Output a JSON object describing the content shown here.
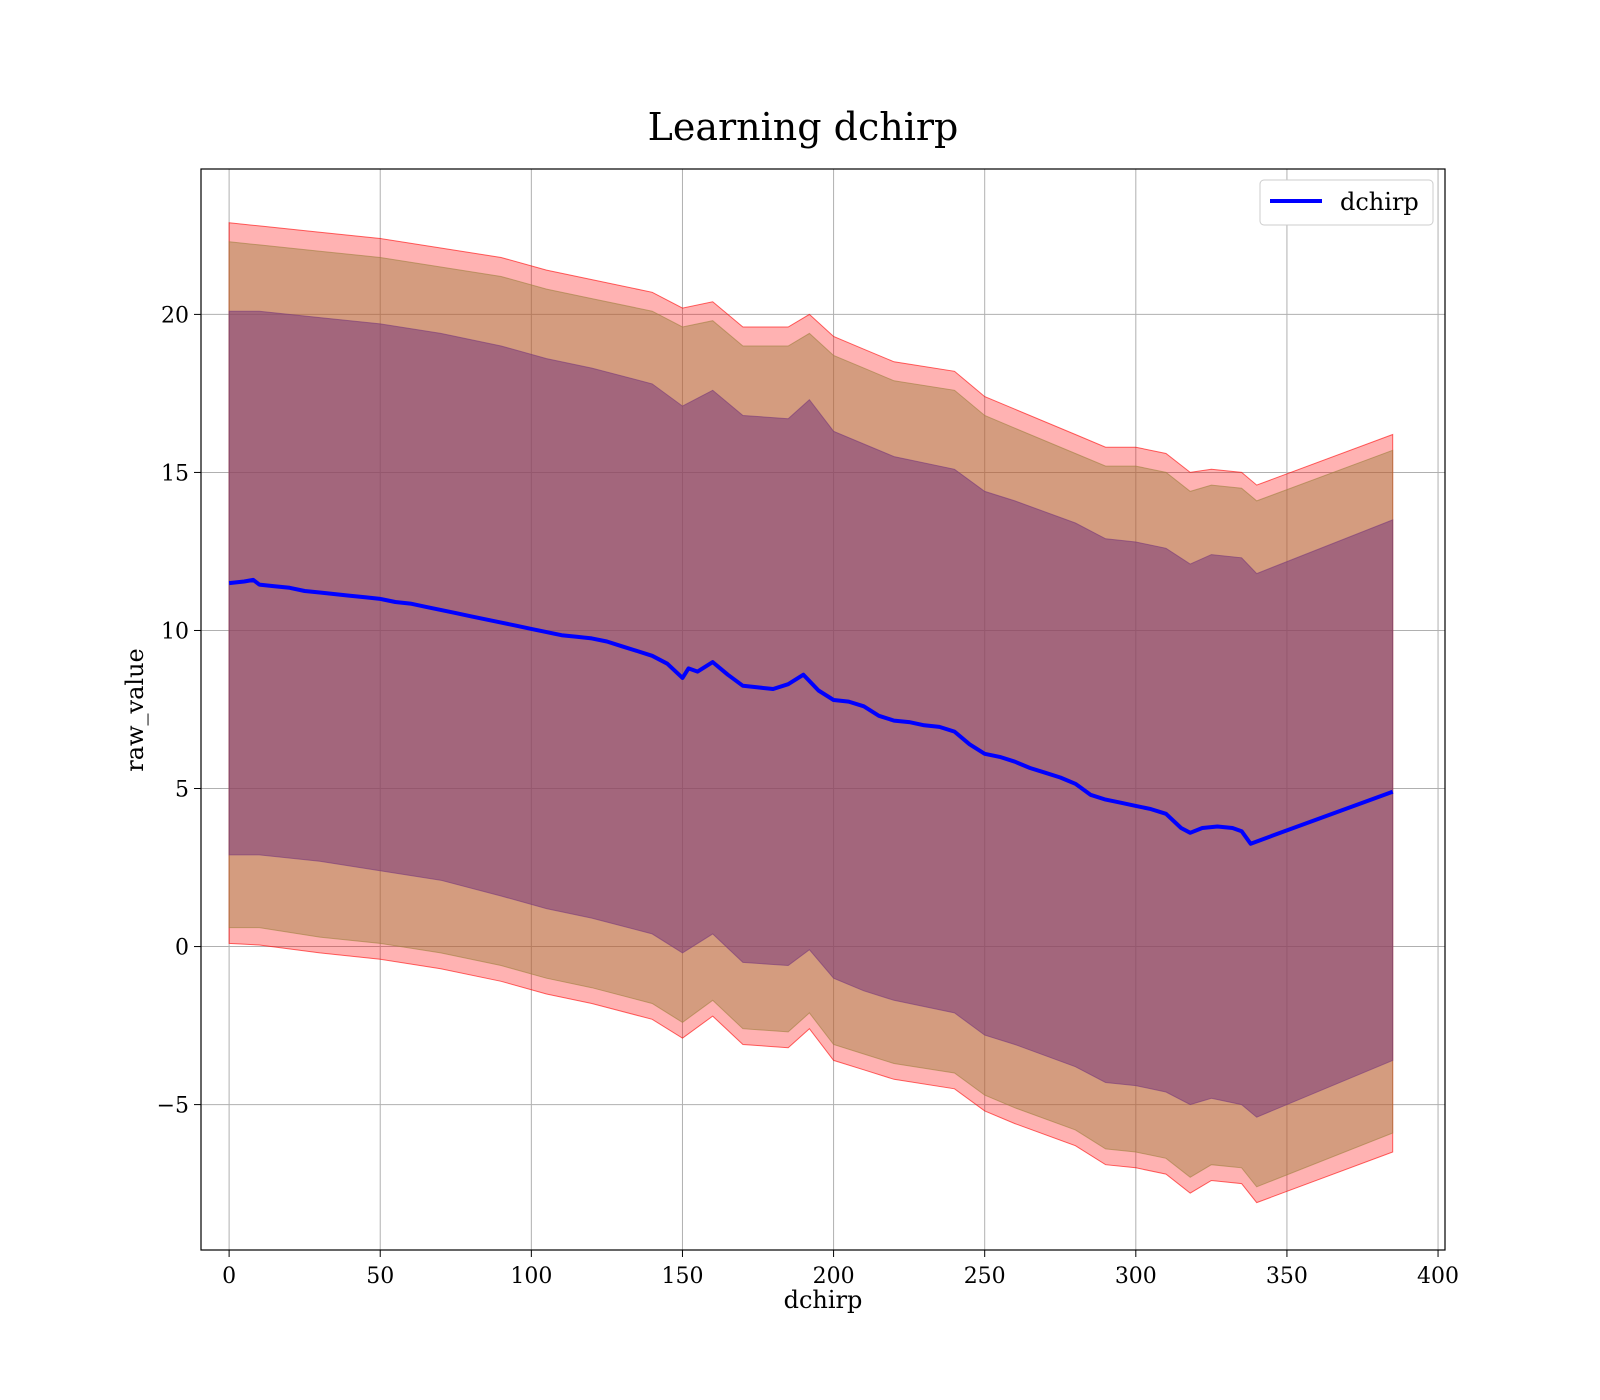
{
  "chart_data": {
    "type": "line",
    "title": "Learning dchirp",
    "xlabel": "dchirp",
    "ylabel": "raw_value",
    "xlim": [
      -9.3,
      402.3
    ],
    "ylim": [
      -9.6,
      24.6
    ],
    "xticks": [
      0,
      50,
      100,
      150,
      200,
      250,
      300,
      350,
      400
    ],
    "yticks": [
      -5,
      0,
      5,
      10,
      15,
      20
    ],
    "ytick_labels": [
      "−5",
      "0",
      "5",
      "10",
      "15",
      "20"
    ],
    "grid": true,
    "legend_position": "top-right",
    "series": [
      {
        "name": "dchirp",
        "color": "#0000ff",
        "x": [
          0,
          5,
          8,
          10,
          15,
          20,
          25,
          30,
          35,
          40,
          45,
          50,
          55,
          60,
          65,
          70,
          75,
          80,
          85,
          90,
          95,
          100,
          105,
          110,
          115,
          120,
          125,
          130,
          135,
          140,
          145,
          150,
          152,
          155,
          160,
          165,
          170,
          175,
          180,
          185,
          190,
          195,
          200,
          205,
          210,
          215,
          220,
          225,
          230,
          235,
          240,
          245,
          250,
          255,
          260,
          265,
          270,
          275,
          280,
          285,
          290,
          295,
          300,
          305,
          310,
          315,
          318,
          322,
          327,
          332,
          335,
          338,
          345,
          385
        ],
        "y": [
          11.5,
          11.55,
          11.6,
          11.45,
          11.4,
          11.35,
          11.25,
          11.2,
          11.15,
          11.1,
          11.05,
          11.0,
          10.9,
          10.85,
          10.75,
          10.65,
          10.55,
          10.45,
          10.35,
          10.25,
          10.15,
          10.05,
          9.95,
          9.85,
          9.8,
          9.75,
          9.65,
          9.5,
          9.35,
          9.2,
          8.95,
          8.5,
          8.8,
          8.7,
          9.0,
          8.6,
          8.25,
          8.2,
          8.15,
          8.3,
          8.6,
          8.1,
          7.8,
          7.75,
          7.6,
          7.3,
          7.15,
          7.1,
          7.0,
          6.95,
          6.8,
          6.4,
          6.1,
          6.0,
          5.85,
          5.65,
          5.5,
          5.35,
          5.15,
          4.8,
          4.65,
          4.55,
          4.45,
          4.35,
          4.2,
          3.75,
          3.6,
          3.75,
          3.8,
          3.75,
          3.65,
          3.25,
          3.5,
          4.9
        ]
      }
    ],
    "bands": [
      {
        "color": "#ff0000",
        "opacity": 0.3,
        "x": [
          0,
          10,
          30,
          50,
          70,
          90,
          105,
          120,
          140,
          150,
          160,
          170,
          185,
          192,
          200,
          210,
          220,
          240,
          250,
          260,
          280,
          290,
          300,
          310,
          318,
          325,
          335,
          340,
          385
        ],
        "upper": [
          22.9,
          22.8,
          22.6,
          22.4,
          22.1,
          21.8,
          21.4,
          21.1,
          20.7,
          20.2,
          20.4,
          19.6,
          19.6,
          20.0,
          19.3,
          18.9,
          18.5,
          18.2,
          17.4,
          17.0,
          16.2,
          15.8,
          15.8,
          15.6,
          15.0,
          15.1,
          15.0,
          14.6,
          16.2
        ],
        "lower": [
          0.1,
          0.05,
          -0.2,
          -0.4,
          -0.7,
          -1.1,
          -1.5,
          -1.8,
          -2.3,
          -2.9,
          -2.2,
          -3.1,
          -3.2,
          -2.6,
          -3.6,
          -3.9,
          -4.2,
          -4.5,
          -5.2,
          -5.6,
          -6.3,
          -6.9,
          -7.0,
          -7.2,
          -7.8,
          -7.4,
          -7.5,
          -8.1,
          -6.5
        ]
      },
      {
        "color": "#a08040",
        "opacity": 0.45,
        "x": [
          0,
          10,
          30,
          50,
          70,
          90,
          105,
          120,
          140,
          150,
          160,
          170,
          185,
          192,
          200,
          210,
          220,
          240,
          250,
          260,
          280,
          290,
          300,
          310,
          318,
          325,
          335,
          340,
          385
        ],
        "upper": [
          22.3,
          22.2,
          22.0,
          21.8,
          21.5,
          21.2,
          20.8,
          20.5,
          20.1,
          19.6,
          19.8,
          19.0,
          19.0,
          19.4,
          18.7,
          18.3,
          17.9,
          17.6,
          16.8,
          16.4,
          15.6,
          15.2,
          15.2,
          15.0,
          14.4,
          14.6,
          14.5,
          14.1,
          15.7
        ],
        "lower": [
          0.6,
          0.6,
          0.3,
          0.1,
          -0.2,
          -0.6,
          -1.0,
          -1.3,
          -1.8,
          -2.4,
          -1.7,
          -2.6,
          -2.7,
          -2.1,
          -3.1,
          -3.4,
          -3.7,
          -4.0,
          -4.7,
          -5.1,
          -5.8,
          -6.4,
          -6.5,
          -6.7,
          -7.3,
          -6.9,
          -7.0,
          -7.6,
          -5.9
        ]
      },
      {
        "color": "#7a3a7a",
        "opacity": 0.55,
        "x": [
          0,
          10,
          30,
          50,
          70,
          90,
          105,
          120,
          140,
          150,
          160,
          170,
          185,
          192,
          200,
          210,
          220,
          240,
          250,
          260,
          280,
          290,
          300,
          310,
          318,
          325,
          335,
          340,
          385
        ],
        "upper": [
          20.1,
          20.1,
          19.9,
          19.7,
          19.4,
          19.0,
          18.6,
          18.3,
          17.8,
          17.1,
          17.6,
          16.8,
          16.7,
          17.3,
          16.3,
          15.9,
          15.5,
          15.1,
          14.4,
          14.1,
          13.4,
          12.9,
          12.8,
          12.6,
          12.1,
          12.4,
          12.3,
          11.8,
          13.5
        ],
        "lower": [
          2.9,
          2.9,
          2.7,
          2.4,
          2.1,
          1.6,
          1.2,
          0.9,
          0.4,
          -0.2,
          0.4,
          -0.5,
          -0.6,
          -0.1,
          -1.0,
          -1.4,
          -1.7,
          -2.1,
          -2.8,
          -3.1,
          -3.8,
          -4.3,
          -4.4,
          -4.6,
          -5.0,
          -4.8,
          -5.0,
          -5.4,
          -3.6
        ]
      }
    ]
  }
}
